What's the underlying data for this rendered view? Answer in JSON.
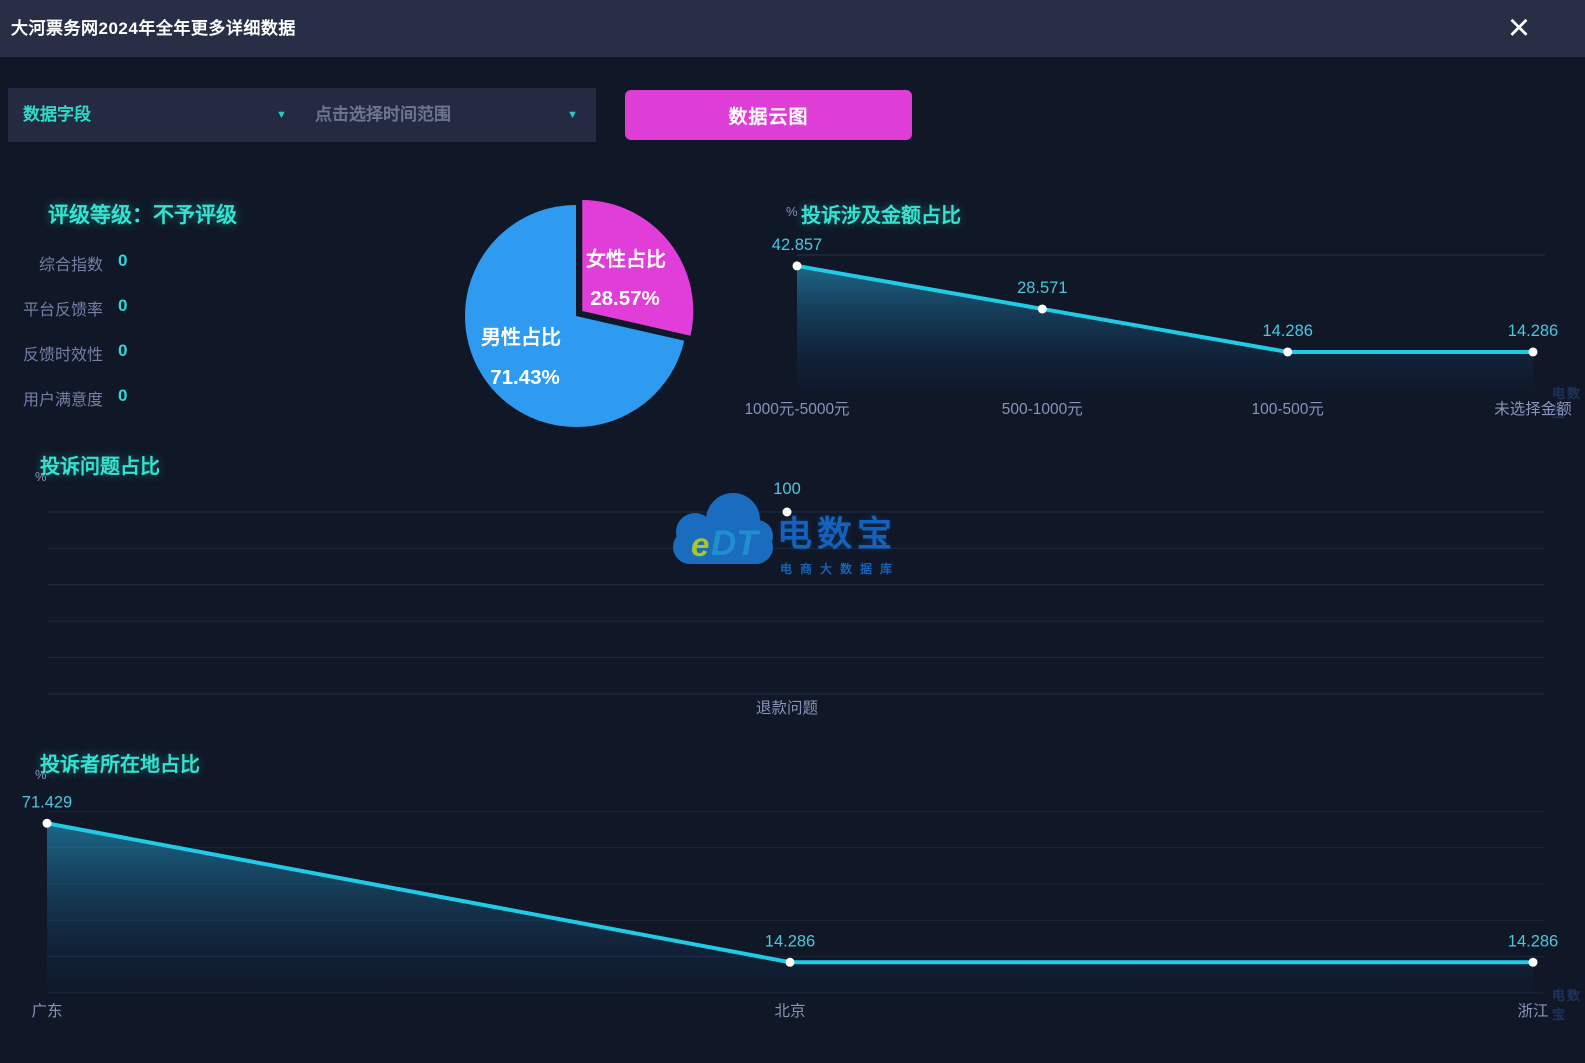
{
  "header": {
    "title": "大河票务网2024年全年更多详细数据"
  },
  "icons": {
    "close": "×",
    "dropdown_arrow": "▼"
  },
  "toolbar": {
    "field_dropdown": {
      "label": "数据字段"
    },
    "time_dropdown": {
      "placeholder": "点击选择时间范围"
    },
    "cloud_button": {
      "label": "数据云图"
    }
  },
  "rating": {
    "title": "评级等级：不予评级",
    "metrics": [
      {
        "label": "综合指数",
        "value": "0"
      },
      {
        "label": "平台反馈率",
        "value": "0"
      },
      {
        "label": "反馈时效性",
        "value": "0"
      },
      {
        "label": "用户满意度",
        "value": "0"
      }
    ]
  },
  "watermark": {
    "logo_e": "e",
    "logo_dt": "DT",
    "brand": "电数宝",
    "subtitle": "电商大数据库"
  },
  "colors": {
    "accent_cyan": "#34e3d2",
    "line_cyan": "#20cbe6",
    "label_cyan": "#49c8de",
    "axis_gray": "#8a93bb",
    "grid_blue": "#7d8fc4",
    "pink": "#df3ed6",
    "pie_blue": "#2e9bf0",
    "pie_magenta": "#e13dd8",
    "background": "#101727",
    "header_bg": "#272e46",
    "panel_bg": "#232a41",
    "watermark_blue": "#1566c2"
  },
  "chart_data": [
    {
      "id": "gender_pie",
      "type": "pie",
      "series": [
        {
          "name": "女性占比",
          "value": 28.57,
          "label": "28.57%",
          "color": "#e13dd8"
        },
        {
          "name": "男性占比",
          "value": 71.43,
          "label": "71.43%",
          "color": "#2e9bf0"
        }
      ],
      "legend_position": "none",
      "start_angle_deg": -90,
      "direction": "clockwise"
    },
    {
      "id": "amount_line",
      "type": "area",
      "title": "投诉涉及金额占比",
      "unit": "%",
      "categories": [
        "1000元-5000元",
        "500-1000元",
        "100-500元",
        "未选择金额"
      ],
      "values": [
        42.857,
        28.571,
        14.286,
        14.286
      ],
      "value_labels": [
        "42.857",
        "28.571",
        "14.286",
        "14.286"
      ],
      "ylim": [
        0,
        46.5
      ],
      "grid": "faint-horizontal"
    },
    {
      "id": "issue_line",
      "type": "line",
      "title": "投诉问题占比",
      "unit": "%",
      "categories": [
        "退款问题"
      ],
      "values": [
        100
      ],
      "value_labels": [
        "100"
      ],
      "ylim": [
        0,
        100
      ],
      "grid": "faint-horizontal"
    },
    {
      "id": "location_line",
      "type": "area",
      "title": "投诉者所在地占比",
      "unit": "%",
      "categories": [
        "广东",
        "北京",
        "浙江"
      ],
      "values": [
        71.429,
        14.286,
        14.286
      ],
      "value_labels": [
        "71.429",
        "14.286",
        "14.286"
      ],
      "ylim": [
        0,
        76.5
      ],
      "grid": "faint-horizontal"
    }
  ]
}
